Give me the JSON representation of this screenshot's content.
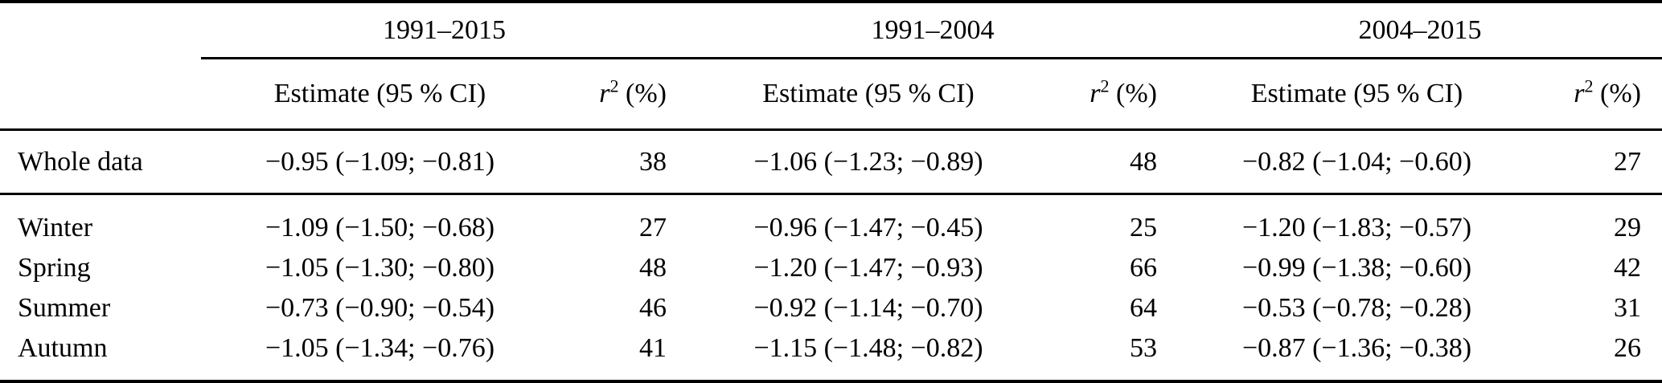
{
  "table": {
    "periods": [
      "1991–2015",
      "1991–2004",
      "2004–2015"
    ],
    "subheader": {
      "estimate": "Estimate (95 % CI)",
      "r2_symbol": "r",
      "r2_exponent": "2",
      "r2_unit": " (%)"
    },
    "rows": [
      {
        "label": "Whole data",
        "section": "whole",
        "cells": [
          {
            "estimate": "−0.95 (−1.09; −0.81)",
            "r2": "38"
          },
          {
            "estimate": "−1.06 (−1.23; −0.89)",
            "r2": "48"
          },
          {
            "estimate": "−0.82 (−1.04; −0.60)",
            "r2": "27"
          }
        ]
      },
      {
        "label": "Winter",
        "section": "seasons",
        "cells": [
          {
            "estimate": "−1.09 (−1.50; −0.68)",
            "r2": "27"
          },
          {
            "estimate": "−0.96 (−1.47; −0.45)",
            "r2": "25"
          },
          {
            "estimate": "−1.20 (−1.83; −0.57)",
            "r2": "29"
          }
        ]
      },
      {
        "label": "Spring",
        "section": "seasons",
        "cells": [
          {
            "estimate": "−1.05 (−1.30; −0.80)",
            "r2": "48"
          },
          {
            "estimate": "−1.20 (−1.47; −0.93)",
            "r2": "66"
          },
          {
            "estimate": "−0.99 (−1.38; −0.60)",
            "r2": "42"
          }
        ]
      },
      {
        "label": "Summer",
        "section": "seasons",
        "cells": [
          {
            "estimate": "−0.73 (−0.90; −0.54)",
            "r2": "46"
          },
          {
            "estimate": "−0.92 (−1.14; −0.70)",
            "r2": "64"
          },
          {
            "estimate": "−0.53 (−0.78; −0.28)",
            "r2": "31"
          }
        ]
      },
      {
        "label": "Autumn",
        "section": "seasons",
        "cells": [
          {
            "estimate": "−1.05 (−1.34; −0.76)",
            "r2": "41"
          },
          {
            "estimate": "−1.15 (−1.48; −0.82)",
            "r2": "53"
          },
          {
            "estimate": "−0.87 (−1.36; −0.38)",
            "r2": "26"
          }
        ]
      }
    ]
  }
}
